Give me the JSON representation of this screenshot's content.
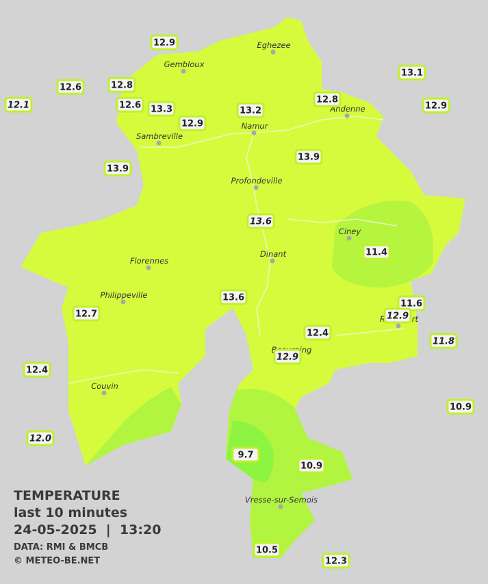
{
  "map": {
    "title": "TEMPERATURE",
    "subtitle": "last 10 minutes",
    "datetime": "24-05-2025  |  13:20",
    "source": "DATA: RMI & BMCB",
    "copyright": "© METEO-BE.NET",
    "cities": [
      "Eghezee",
      "Gembloux",
      "Andenne",
      "Namur",
      "Sambreville",
      "Profondeville",
      "Ciney",
      "Dinant",
      "Florennes",
      "Philippeville",
      "Rochefort",
      "Beauraing",
      "Couvin",
      "Vresse-sur-Semois"
    ],
    "stations": [
      {
        "temp": "12.9",
        "italic": false
      },
      {
        "temp": "12.6",
        "italic": false
      },
      {
        "temp": "12.8",
        "italic": false
      },
      {
        "temp": "12.1",
        "italic": true
      },
      {
        "temp": "12.6",
        "italic": false
      },
      {
        "temp": "13.3",
        "italic": false
      },
      {
        "temp": "12.9",
        "italic": false
      },
      {
        "temp": "13.2",
        "italic": false
      },
      {
        "temp": "12.8",
        "italic": false
      },
      {
        "temp": "13.1",
        "italic": false
      },
      {
        "temp": "12.9",
        "italic": false
      },
      {
        "temp": "13.9",
        "italic": false
      },
      {
        "temp": "13.9",
        "italic": false
      },
      {
        "temp": "13.6",
        "italic": true
      },
      {
        "temp": "11.4",
        "italic": false
      },
      {
        "temp": "13.6",
        "italic": false
      },
      {
        "temp": "12.7",
        "italic": false
      },
      {
        "temp": "11.6",
        "italic": false
      },
      {
        "temp": "12.9",
        "italic": true
      },
      {
        "temp": "12.4",
        "italic": false
      },
      {
        "temp": "11.8",
        "italic": true
      },
      {
        "temp": "12.9",
        "italic": true
      },
      {
        "temp": "12.4",
        "italic": false
      },
      {
        "temp": "10.9",
        "italic": false
      },
      {
        "temp": "12.0",
        "italic": true
      },
      {
        "temp": "9.7",
        "italic": false
      },
      {
        "temp": "10.9",
        "italic": false
      },
      {
        "temp": "10.5",
        "italic": false
      },
      {
        "temp": "12.3",
        "italic": false
      }
    ]
  }
}
